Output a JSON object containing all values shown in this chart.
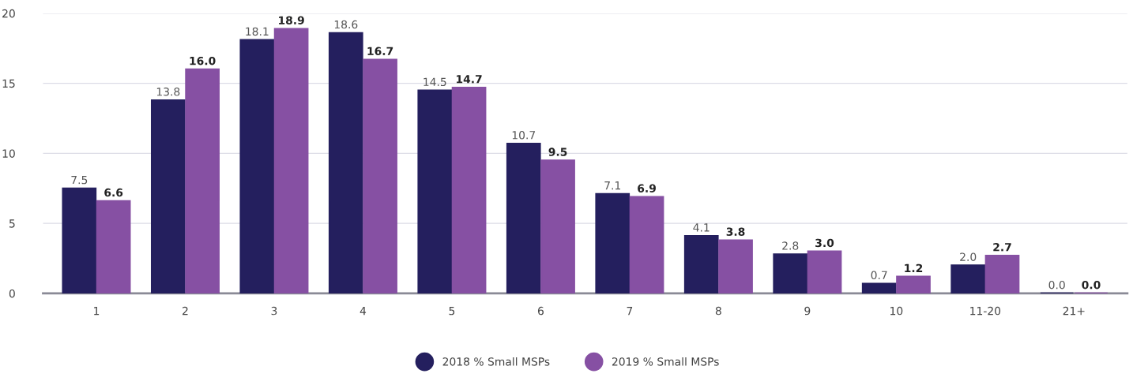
{
  "chart_data": {
    "type": "bar",
    "categories": [
      "1",
      "2",
      "3",
      "4",
      "5",
      "6",
      "7",
      "8",
      "9",
      "10",
      "11-20",
      "21+"
    ],
    "series": [
      {
        "name": "2018 % Small MSPs",
        "color": "#241f5e",
        "values": [
          7.5,
          13.8,
          18.1,
          18.6,
          14.5,
          10.7,
          7.1,
          4.1,
          2.8,
          0.7,
          2.0,
          0.0
        ],
        "value_labels": [
          "7.5",
          "13.8",
          "18.1",
          "18.6",
          "14.5",
          "10.7",
          "7.1",
          "4.1",
          "2.8",
          "0.7",
          "2.0",
          "0.0"
        ]
      },
      {
        "name": "2019 % Small MSPs",
        "color": "#8650a3",
        "values": [
          6.6,
          16.0,
          18.9,
          16.7,
          14.7,
          9.5,
          6.9,
          3.8,
          3.0,
          1.2,
          2.7,
          0.0
        ],
        "value_labels": [
          "6.6",
          "16.0",
          "18.9",
          "16.7",
          "14.7",
          "9.5",
          "6.9",
          "3.8",
          "3.0",
          "1.2",
          "2.7",
          "0.0"
        ]
      }
    ],
    "ylim": [
      0,
      20
    ],
    "yticks": [
      0,
      5,
      10,
      15,
      20
    ],
    "grid": "y",
    "legend": "bottom"
  }
}
